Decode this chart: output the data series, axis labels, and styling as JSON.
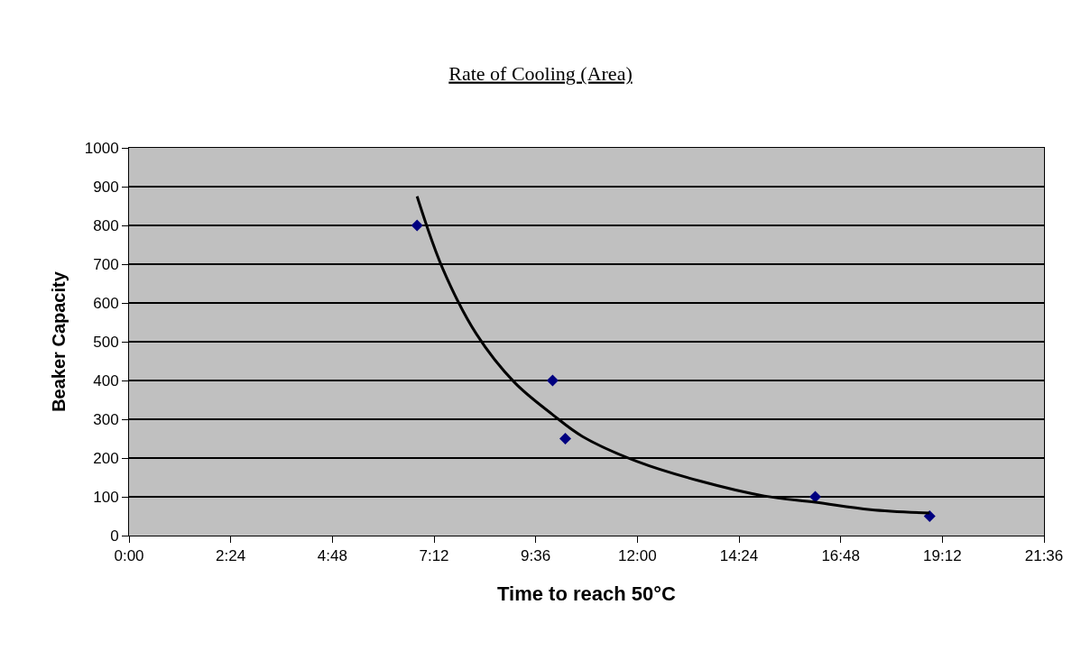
{
  "chart_data": {
    "type": "scatter",
    "title": "Rate of Cooling (Area)",
    "xlabel": "Time to reach 50°C",
    "ylabel": "Beaker Capacity",
    "xlim": [
      0,
      21.6
    ],
    "xticks": [
      {
        "value": 0,
        "label": "0:00"
      },
      {
        "value": 2.4,
        "label": "2:24"
      },
      {
        "value": 4.8,
        "label": "4:48"
      },
      {
        "value": 7.2,
        "label": "7:12"
      },
      {
        "value": 9.6,
        "label": "9:36"
      },
      {
        "value": 12,
        "label": "12:00"
      },
      {
        "value": 14.4,
        "label": "14:24"
      },
      {
        "value": 16.8,
        "label": "16:48"
      },
      {
        "value": 19.2,
        "label": "19:12"
      },
      {
        "value": 21.6,
        "label": "21:36"
      }
    ],
    "ylim": [
      0,
      1000
    ],
    "yticks": [
      0,
      100,
      200,
      300,
      400,
      500,
      600,
      700,
      800,
      900,
      1000
    ],
    "grid": "y",
    "legend": false,
    "series": [
      {
        "color": "#000080",
        "marker": "diamond",
        "x": [
          6.8,
          10.0,
          10.3,
          16.2,
          18.9
        ],
        "values": [
          800,
          400,
          250,
          100,
          50
        ]
      },
      {
        "type": "line",
        "color": "#000000",
        "marker": "none",
        "line_style": "solid",
        "x": [
          6.8,
          7.4,
          8.2,
          9.1,
          10.0,
          10.7,
          12.0,
          13.5,
          15.0,
          16.2,
          17.5,
          18.9
        ],
        "values": [
          875,
          690,
          520,
          395,
          312,
          256,
          191,
          140,
          102,
          86,
          67,
          58
        ]
      }
    ]
  }
}
